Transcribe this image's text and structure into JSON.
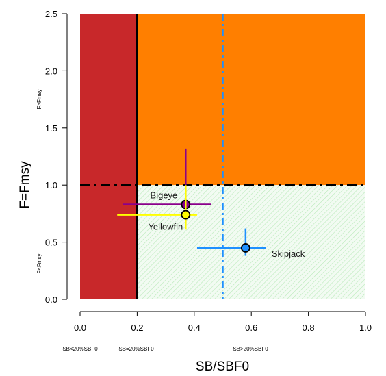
{
  "chart_data": {
    "type": "scatter",
    "title": "",
    "xlabel": "SB/SBF0",
    "ylabel": "F=Fmsy",
    "xlim": [
      0.0,
      1.0
    ],
    "ylim": [
      0.0,
      2.5
    ],
    "x_ticks": [
      0.0,
      0.2,
      0.4,
      0.6,
      0.8,
      1.0
    ],
    "x_tick_labels": [
      "0.0",
      "0.2",
      "0.4",
      "0.6",
      "0.8",
      "1.0"
    ],
    "y_ticks": [
      0.0,
      0.5,
      1.0,
      1.5,
      2.0,
      2.5
    ],
    "y_tick_labels": [
      "0.0",
      "0.5",
      "1.0",
      "1.5",
      "2.0",
      "2.5"
    ],
    "zone_labels": {
      "y_upper": "F>Fmsy",
      "y_lower": "F<Fmsy",
      "x_left": "SB<20%SBF0",
      "x_mid": "SB=20%SBF0",
      "x_right": "SB>20%SBF0"
    },
    "zones": [
      {
        "name": "critical",
        "x": [
          0.0,
          0.2
        ],
        "y": [
          0.0,
          2.5
        ],
        "color": "#c8282a"
      },
      {
        "name": "overfishing",
        "x": [
          0.2,
          1.0
        ],
        "y": [
          1.0,
          2.5
        ],
        "color": "#ff7f00"
      },
      {
        "name": "healthy",
        "x": [
          0.2,
          1.0
        ],
        "y": [
          0.0,
          1.0
        ],
        "color": "#e6f7e6"
      }
    ],
    "reference_lines": [
      {
        "orientation": "vertical",
        "value": 0.2,
        "style": "solid",
        "color": "#000000"
      },
      {
        "orientation": "horizontal",
        "value": 1.0,
        "style": "dashdot",
        "color": "#000000"
      },
      {
        "orientation": "vertical",
        "value": 0.5,
        "style": "dashdot",
        "color": "#1e90ff"
      }
    ],
    "series": [
      {
        "name": "Bigeye",
        "x": 0.37,
        "y": 0.83,
        "x_range": [
          0.15,
          0.46
        ],
        "y_range": [
          0.65,
          1.32
        ],
        "color": "#8b008b",
        "fill": "#8b008b",
        "label_position": "upper-left"
      },
      {
        "name": "Yellowfin",
        "x": 0.37,
        "y": 0.74,
        "x_range": [
          0.13,
          0.41
        ],
        "y_range": [
          0.61,
          1.0
        ],
        "color": "#ffff00",
        "fill": "#ffff00",
        "label_position": "lower-left"
      },
      {
        "name": "Skipjack",
        "x": 0.58,
        "y": 0.45,
        "x_range": [
          0.41,
          0.65
        ],
        "y_range": [
          0.38,
          0.62
        ],
        "color": "#1e90ff",
        "fill": "#1e90ff",
        "label_position": "right"
      }
    ]
  }
}
